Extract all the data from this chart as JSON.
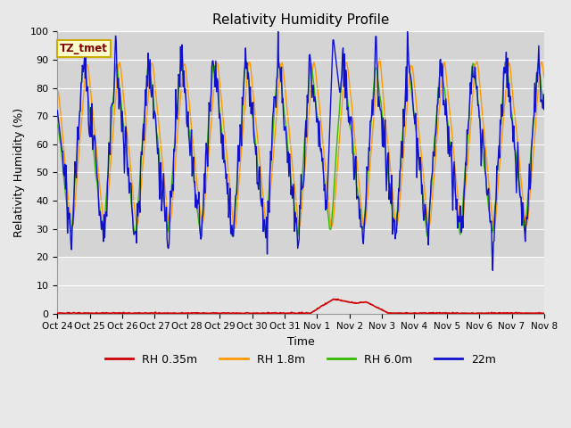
{
  "title": "Relativity Humidity Profile",
  "ylabel": "Relativity Humidity (%)",
  "xlabel": "Time",
  "annotation_label": "TZ_tmet",
  "ylim": [
    0,
    100
  ],
  "legend_labels": [
    "RH 0.35m",
    "RH 1.8m",
    "RH 6.0m",
    "22m"
  ],
  "line_colors": [
    "#cc0000",
    "#ff9900",
    "#33bb00",
    "#1111cc"
  ],
  "background_color": "#e8e8e8",
  "plot_bg_color": "#d4d4d4",
  "tick_labels": [
    "Oct 24",
    "Oct 25",
    "Oct 26",
    "Oct 27",
    "Oct 28",
    "Oct 29",
    "Oct 30",
    "Oct 31",
    "Nov 1",
    "Nov 2",
    "Nov 3",
    "Nov 4",
    "Nov 5",
    "Nov 6",
    "Nov 7",
    "Nov 8"
  ],
  "yticks": [
    0,
    10,
    20,
    30,
    40,
    50,
    60,
    70,
    80,
    90,
    100
  ],
  "seed": 42
}
